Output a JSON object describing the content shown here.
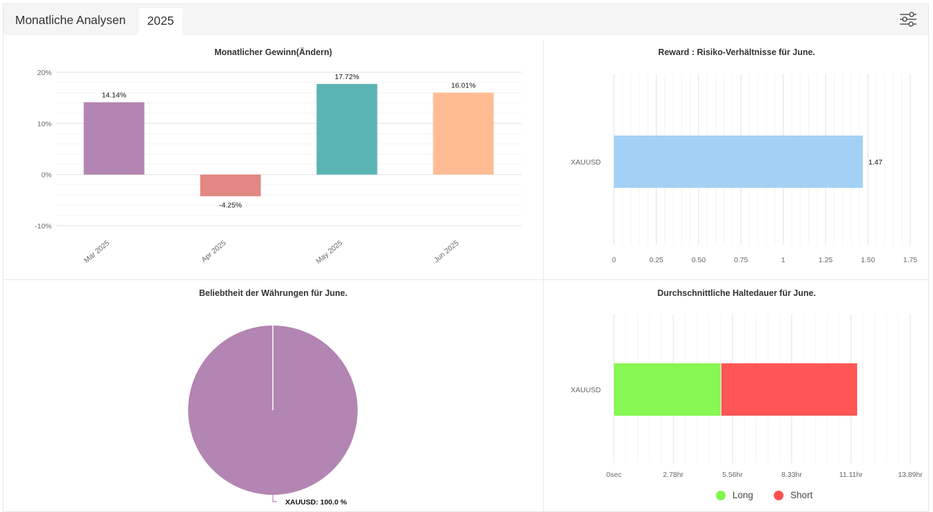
{
  "header": {
    "title": "Monatliche Analysen",
    "active_tab": "2025",
    "settings_icon": "sliders-icon"
  },
  "chart_data": [
    {
      "type": "bar",
      "title": "Monatlicher Gewinn(Ändern)",
      "categories": [
        "Mar 2025",
        "Apr 2025",
        "May 2025",
        "Jun 2025"
      ],
      "values": [
        14.14,
        -4.25,
        17.72,
        16.01
      ],
      "data_labels": [
        "14.14%",
        "-4.25%",
        "17.72%",
        "16.01%"
      ],
      "colors": [
        "#b385b2",
        "#e28783",
        "#5bb4b4",
        "#ffbc94"
      ],
      "ylim": [
        -10,
        20
      ],
      "yticks": [
        20,
        10,
        0,
        -10
      ],
      "ytick_labels": [
        "20%",
        "10%",
        "0%",
        "-10%"
      ],
      "xlabel": "",
      "ylabel": "",
      "grid": true
    },
    {
      "type": "bar",
      "orientation": "horizontal",
      "title": "Reward : Risiko-Verhältnisse für June.",
      "categories": [
        "XAUUSD"
      ],
      "values": [
        1.47
      ],
      "data_labels": [
        "1.47"
      ],
      "colors": [
        "#a0d0f5"
      ],
      "xlim": [
        0,
        1.75
      ],
      "xticks": [
        0,
        0.25,
        0.5,
        0.75,
        1,
        1.25,
        1.5,
        1.75
      ],
      "xtick_labels": [
        "0",
        "0.25",
        "0.50",
        "0.75",
        "1",
        "1.25",
        "1.50",
        "1.75"
      ],
      "grid": true
    },
    {
      "type": "pie",
      "title": "Beliebtheit der Währungen für June.",
      "labels": [
        "XAUUSD"
      ],
      "values": [
        100.0
      ],
      "data_labels": [
        "XAUUSD: 100.0 %"
      ],
      "colors": [
        "#b385b2"
      ]
    },
    {
      "type": "bar",
      "orientation": "horizontal",
      "stacked": true,
      "title": "Durchschnittliche Haltedauer für June.",
      "categories": [
        "XAUUSD"
      ],
      "unit": "hr",
      "series": [
        {
          "name": "Long",
          "values": [
            5.0
          ],
          "color": "#82f74d"
        },
        {
          "name": "Short",
          "values": [
            6.4
          ],
          "color": "#ff4f4f"
        }
      ],
      "xlim": [
        0,
        13.89
      ],
      "xticks": [
        0,
        2.78,
        5.56,
        8.33,
        11.11,
        13.89
      ],
      "xtick_labels": [
        "0sec",
        "2.78hr",
        "5.56hr",
        "8.33hr",
        "11.11hr",
        "13.89hr"
      ],
      "legend": "bottom",
      "grid": true
    }
  ]
}
